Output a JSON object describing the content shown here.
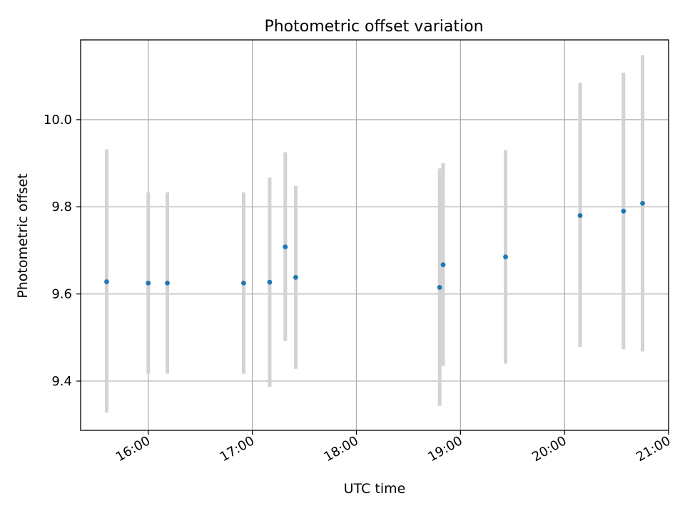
{
  "chart_data": {
    "type": "scatter",
    "title": "Photometric offset variation",
    "xlabel": "UTC time",
    "ylabel": "Photometric offset",
    "x_tick_labels": [
      "16:00",
      "17:00",
      "18:00",
      "19:00",
      "20:00",
      "21:00"
    ],
    "y_tick_labels": [
      "9.4",
      "9.6",
      "9.8",
      "10.0"
    ],
    "xlim": [
      "15:21",
      "21:00"
    ],
    "ylim": [
      9.287,
      10.183
    ],
    "grid": true,
    "colors": {
      "point": "#1f77b4",
      "errorbar": "#d3d3d3",
      "grid": "#b0b0b0"
    },
    "points": [
      {
        "x": "15:36",
        "y": 9.628,
        "y_low": 9.328,
        "y_high": 9.932
      },
      {
        "x": "16:00",
        "y": 9.625,
        "y_low": 9.417,
        "y_high": 9.833
      },
      {
        "x": "16:11",
        "y": 9.625,
        "y_low": 9.417,
        "y_high": 9.833
      },
      {
        "x": "16:55",
        "y": 9.625,
        "y_low": 9.417,
        "y_high": 9.833
      },
      {
        "x": "17:10",
        "y": 9.627,
        "y_low": 9.387,
        "y_high": 9.867
      },
      {
        "x": "17:19",
        "y": 9.708,
        "y_low": 9.492,
        "y_high": 9.925
      },
      {
        "x": "17:25",
        "y": 9.638,
        "y_low": 9.428,
        "y_high": 9.848
      },
      {
        "x": "18:48",
        "y": 9.615,
        "y_low": 9.343,
        "y_high": 9.888
      },
      {
        "x": "18:50",
        "y": 9.667,
        "y_low": 9.435,
        "y_high": 9.9
      },
      {
        "x": "19:26",
        "y": 9.685,
        "y_low": 9.44,
        "y_high": 9.93
      },
      {
        "x": "20:09",
        "y": 9.78,
        "y_low": 9.478,
        "y_high": 10.085
      },
      {
        "x": "20:34",
        "y": 9.79,
        "y_low": 9.473,
        "y_high": 10.108
      },
      {
        "x": "20:45",
        "y": 9.808,
        "y_low": 9.468,
        "y_high": 10.148
      }
    ]
  }
}
